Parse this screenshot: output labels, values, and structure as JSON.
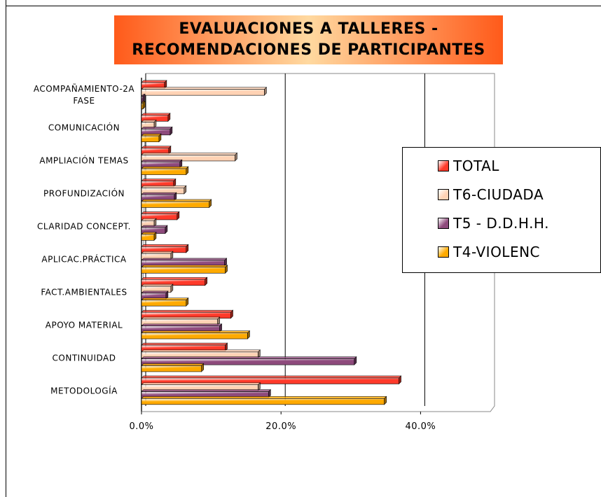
{
  "chart_data": {
    "type": "bar",
    "orientation": "horizontal",
    "title": [
      "EVALUACIONES A TALLERES -",
      "RECOMENDACIONES DE PARTICIPANTES"
    ],
    "categories": [
      "ACOMPAÑAMIENTO-2A FASE",
      "COMUNICACIÓN",
      "AMPLIACIÓN TEMAS",
      "PROFUNDIZACIÓN",
      "CLARIDAD CONCEPT.",
      "APLICAC.PRÁCTICA",
      "FACT.AMBIENTALES",
      "APOYO MATERIAL",
      "CONTINUIDAD",
      "METODOLOGÍA"
    ],
    "series": [
      {
        "name": "TOTAL",
        "color": "#ff3a2a",
        "values": [
          3.3,
          3.8,
          3.9,
          4.6,
          5.1,
          6.4,
          9.1,
          12.8,
          12.0,
          36.9
        ]
      },
      {
        "name": "T6-CIUDADA",
        "color": "#ffd2b4",
        "values": [
          17.6,
          1.8,
          13.4,
          6.1,
          1.8,
          4.2,
          4.2,
          10.9,
          16.7,
          16.7
        ]
      },
      {
        "name": "T5 - D.D.H.H.",
        "color": "#8e4a7c",
        "values": [
          0.2,
          4.1,
          5.5,
          4.7,
          3.4,
          11.9,
          3.5,
          11.2,
          30.5,
          18.2
        ]
      },
      {
        "name": "T4-VIOLENC",
        "color": "#ffaa00",
        "values": [
          0.2,
          2.5,
          6.4,
          9.7,
          1.8,
          12.0,
          6.4,
          15.2,
          8.6,
          34.8
        ]
      }
    ],
    "xlim": [
      0,
      50
    ],
    "xticks": [
      {
        "value": 0,
        "label": "0.0%"
      },
      {
        "value": 20,
        "label": "20.0%"
      },
      {
        "value": 40,
        "label": "40.0%"
      }
    ],
    "grid": true,
    "legend": "right"
  }
}
